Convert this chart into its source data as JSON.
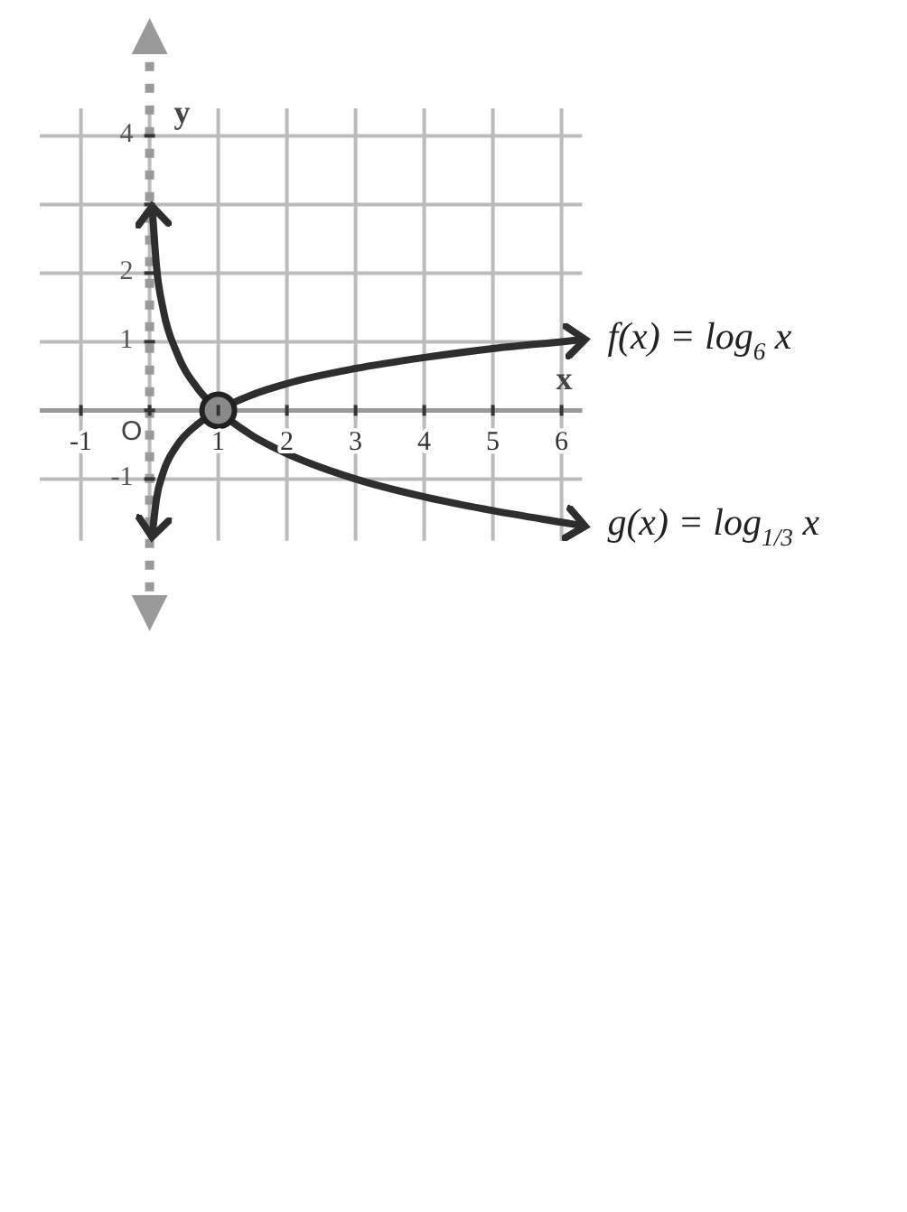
{
  "chart_data": {
    "type": "line",
    "xlabel": "x",
    "ylabel": "y",
    "xlim": [
      -1.6,
      6.3
    ],
    "ylim": [
      -1.9,
      4.4
    ],
    "xticks": [
      -1,
      {
        "value": 0,
        "label": null
      },
      1,
      2,
      3,
      4,
      5,
      6
    ],
    "yticks": [
      -1,
      {
        "value": 0,
        "label": null
      },
      1,
      2,
      {
        "value": 3,
        "label": null
      },
      4
    ],
    "grid": true,
    "legend": false,
    "line_style": "solid",
    "annotations": [
      "O"
    ],
    "ref_lines": [
      {
        "axis": "x",
        "value": 0,
        "color": "#999999",
        "line_style": "dotted"
      }
    ],
    "series": [
      {
        "name": "f(x) = log$_{6}$x",
        "color": "#2e2e2e",
        "x": [
          0.04,
          0.1,
          0.2,
          0.4,
          0.7,
          1,
          1.5,
          2,
          3,
          4,
          5,
          6,
          6.3
        ],
        "values": [
          -1.8,
          -1.29,
          -0.9,
          -0.51,
          -0.2,
          0,
          0.23,
          0.39,
          0.61,
          0.77,
          0.9,
          1,
          1.03
        ]
      },
      {
        "name": "g(x) = log$_{1/3}$x",
        "color": "#2e2e2e",
        "x": [
          0.04,
          0.1,
          0.2,
          0.4,
          0.7,
          1,
          1.5,
          2,
          3,
          4,
          5,
          6,
          6.3
        ],
        "values": [
          2.93,
          2.1,
          1.46,
          0.83,
          0.32,
          0,
          -0.37,
          -0.63,
          -1,
          -1.26,
          -1.46,
          -1.63,
          -1.68
        ]
      },
      {
        "type": "scatter",
        "color": "#8a8a8a",
        "marker": "circle",
        "x": [
          1
        ],
        "values": [
          0
        ]
      }
    ]
  }
}
